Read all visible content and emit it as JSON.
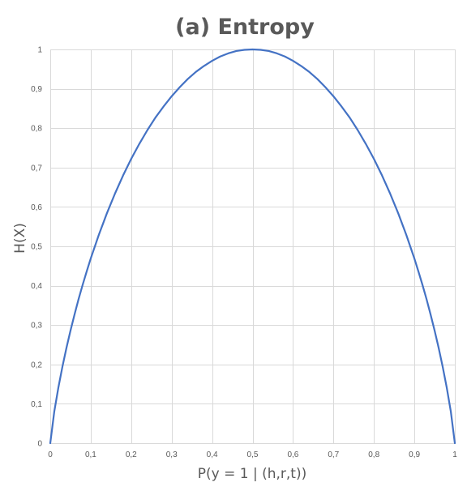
{
  "chart_data": {
    "type": "line",
    "title": "(a) Entropy",
    "xlabel": "P(y = 1 | (h,r,t))",
    "ylabel": "H(X)",
    "xlim": [
      0,
      1
    ],
    "ylim": [
      0,
      1
    ],
    "x_ticks": [
      "0",
      "0,1",
      "0,2",
      "0,3",
      "0,4",
      "0,5",
      "0,6",
      "0,7",
      "0,8",
      "0,9",
      "1"
    ],
    "y_ticks": [
      "0",
      "0,1",
      "0,2",
      "0,3",
      "0,4",
      "0,5",
      "0,6",
      "0,7",
      "0,8",
      "0,9",
      "1"
    ],
    "grid": true,
    "legend": false,
    "series": [
      {
        "color": "#4472c4",
        "x": [
          0,
          0.01,
          0.02,
          0.03,
          0.04,
          0.05,
          0.06,
          0.07,
          0.08,
          0.09,
          0.1,
          0.12,
          0.14,
          0.16,
          0.18,
          0.2,
          0.22,
          0.24,
          0.26,
          0.28,
          0.3,
          0.32,
          0.34,
          0.36,
          0.38,
          0.4,
          0.42,
          0.44,
          0.46,
          0.48,
          0.5,
          0.52,
          0.54,
          0.56,
          0.58,
          0.6,
          0.62,
          0.64,
          0.66,
          0.68,
          0.7,
          0.72,
          0.74,
          0.76,
          0.78,
          0.8,
          0.82,
          0.84,
          0.86,
          0.88,
          0.9,
          0.91,
          0.92,
          0.93,
          0.94,
          0.95,
          0.96,
          0.97,
          0.98,
          0.99,
          1
        ],
        "y": [
          0,
          0.081,
          0.141,
          0.194,
          0.242,
          0.286,
          0.327,
          0.366,
          0.402,
          0.436,
          0.469,
          0.529,
          0.584,
          0.634,
          0.68,
          0.722,
          0.76,
          0.795,
          0.827,
          0.855,
          0.881,
          0.904,
          0.925,
          0.943,
          0.958,
          0.971,
          0.982,
          0.99,
          0.996,
          0.999,
          1,
          0.999,
          0.996,
          0.99,
          0.982,
          0.971,
          0.958,
          0.943,
          0.925,
          0.904,
          0.881,
          0.855,
          0.827,
          0.795,
          0.76,
          0.722,
          0.68,
          0.634,
          0.584,
          0.529,
          0.469,
          0.436,
          0.402,
          0.366,
          0.327,
          0.286,
          0.242,
          0.194,
          0.141,
          0.081,
          0
        ]
      }
    ]
  }
}
